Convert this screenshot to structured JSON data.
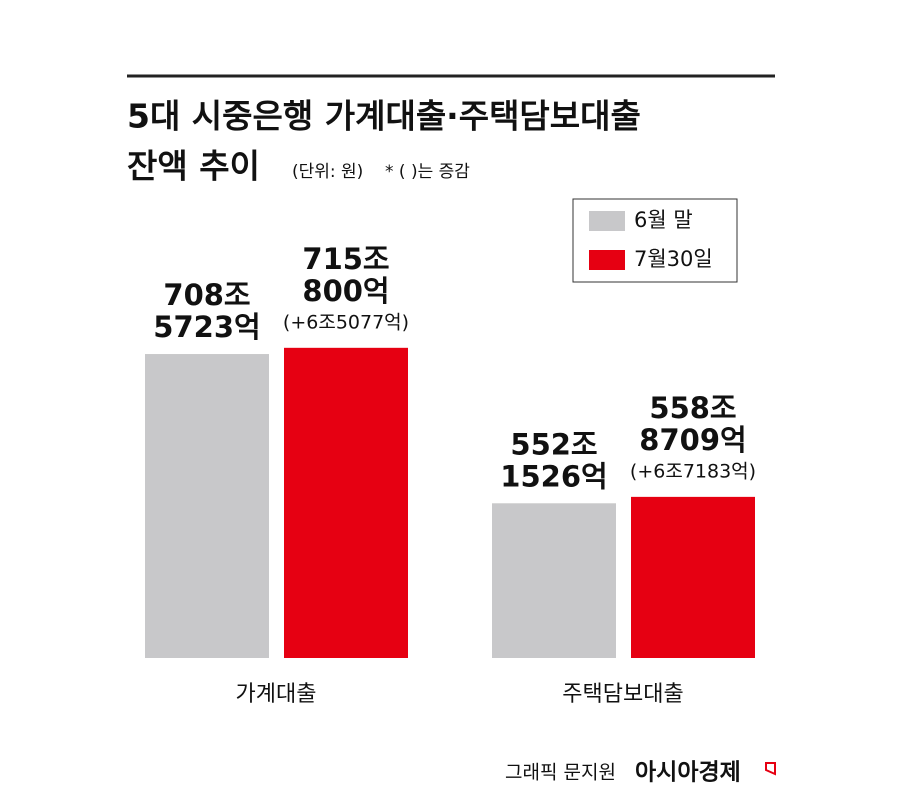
{
  "chart_data": {
    "type": "bar",
    "title": "5대 시중은행 가계대출·주택담보대출",
    "title_line2": "잔액 추이",
    "unit_note": "(단위: 원)",
    "change_note": "* ( )는 증감",
    "categories": [
      "가계대출",
      "주택담보대출"
    ],
    "series": [
      {
        "name": "6월 말",
        "color": "#c8c8ca",
        "values": [
          708.5723,
          552.1526
        ],
        "value_labels": [
          "708조 5723억",
          "552조 1526억"
        ]
      },
      {
        "name": "7월30일",
        "color": "#e60012",
        "values": [
          715.08,
          558.8709
        ],
        "value_labels": [
          "715조 800억",
          "558조 8709억"
        ],
        "change_labels": [
          "(+6조5077억)",
          "(+6조7183억)"
        ]
      }
    ],
    "ylim": [
      390,
      870
    ],
    "legend": "upper-right",
    "source": "그래픽 문지원",
    "brand": "아시아경제"
  }
}
